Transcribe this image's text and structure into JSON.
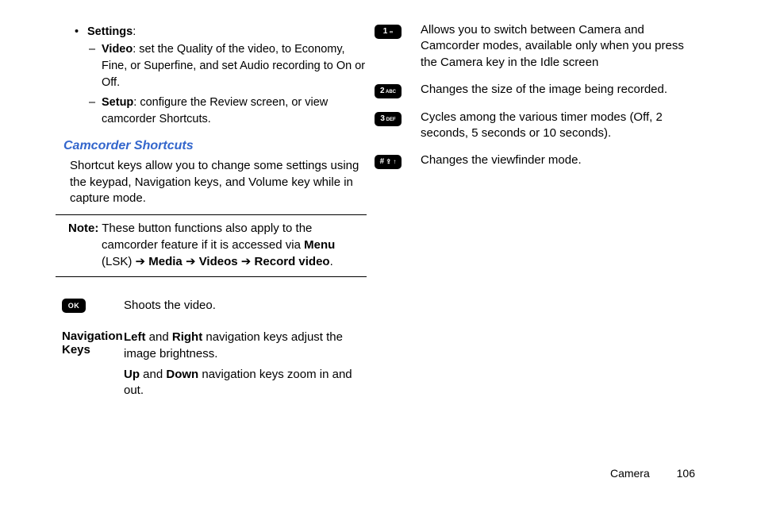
{
  "left": {
    "settings_label": "Settings",
    "video_label": "Video",
    "video_text": ": set the Quality of the video, to Economy, Fine, or Superfine, and set Audio recording to On or Off.",
    "setup_label": "Setup",
    "setup_text": ": configure the Review screen,  or view camcorder Shortcuts.",
    "heading": "Camcorder Shortcuts",
    "intro": "Shortcut keys allow you to change some settings using the keypad, Navigation keys, and Volume key while in capture mode.",
    "note_label": "Note:",
    "note_1": " These button functions also apply to the camcorder feature if it is accessed via ",
    "note_menu": "Menu",
    "note_2": " (LSK) ",
    "note_media": "Media",
    "note_videos": "Videos",
    "note_record": "Record video",
    "note_period": ".",
    "arrow": "➔",
    "ok_label": "OK",
    "ok_desc": "Shoots the video.",
    "nav_label1": "Navigation",
    "nav_label2": "Keys",
    "nav_left": "Left",
    "nav_and": " and ",
    "nav_right": "Right",
    "nav_line1_tail": " navigation keys adjust the image brightness.",
    "nav_up": "Up",
    "nav_down": "Down",
    "nav_line2_tail": " navigation keys zoom in and out."
  },
  "right": {
    "k1_label": "1 ",
    "k1_sub": "",
    "k1_desc": "Allows you to switch between Camera and Camcorder modes, available only when you press the Camera key in the Idle screen",
    "k2_label": "2",
    "k2_sub": " ABC",
    "k2_desc": "Changes the size of the image being recorded.",
    "k3_label": "3",
    "k3_sub": " DEF",
    "k3_desc": "Cycles among the various timer modes (Off, 2 seconds, 5 seconds or 10 seconds).",
    "k4_label": "#",
    "k4_sub": "",
    "k4_desc": "Changes the viewfinder mode."
  },
  "footer": {
    "section": "Camera",
    "page": "106"
  },
  "style": {
    "heading_color": "#3366cc",
    "text_color": "#000000",
    "bg_color": "#ffffff",
    "icon_bg": "#000000",
    "icon_fg": "#ffffff"
  }
}
